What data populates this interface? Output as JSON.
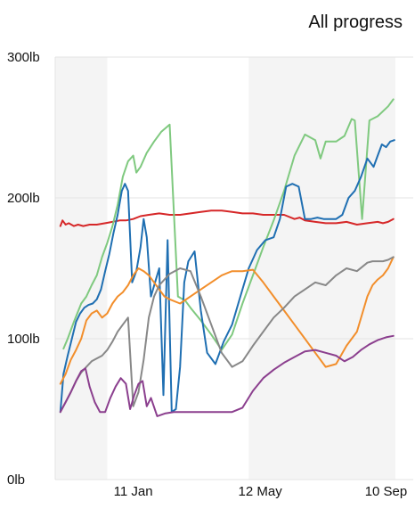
{
  "header": {
    "title": "All progress"
  },
  "chart_data": {
    "type": "line",
    "title": "",
    "xlabel": "",
    "ylabel": "",
    "y_ticks": [
      "0lb",
      "100lb",
      "200lb",
      "300lb"
    ],
    "y_tick_values": [
      0,
      100,
      200,
      300
    ],
    "ylim": [
      0,
      300
    ],
    "x_ticks": [
      "11 Jan",
      "12 May",
      "10 Sep"
    ],
    "x_tick_values": [
      45,
      167,
      288
    ],
    "xlim": [
      -30,
      297
    ],
    "grid": true,
    "legend": "none",
    "shaded_bands": [
      [
        -30,
        20
      ],
      [
        156,
        297
      ]
    ],
    "series": [
      {
        "color": "#d62728",
        "x": [
          -25,
          -23,
          -20,
          -17,
          -12,
          -8,
          -3,
          3,
          10,
          18,
          25,
          32,
          38,
          45,
          52,
          60,
          70,
          80,
          90,
          100,
          110,
          120,
          130,
          140,
          150,
          160,
          170,
          180,
          190,
          200,
          205,
          210,
          220,
          230,
          240,
          250,
          260,
          270,
          280,
          285,
          290,
          295
        ],
        "y": [
          180,
          184,
          181,
          182,
          180,
          181,
          180,
          181,
          181,
          182,
          183,
          184,
          184,
          185,
          187,
          188,
          189,
          188,
          188,
          189,
          190,
          191,
          191,
          190,
          189,
          189,
          188,
          188,
          188,
          185,
          186,
          184,
          183,
          182,
          182,
          183,
          181,
          182,
          183,
          182,
          183,
          185
        ]
      },
      {
        "color": "#7fc97f",
        "x": [
          -22,
          -18,
          -12,
          -5,
          0,
          5,
          10,
          15,
          20,
          25,
          30,
          35,
          40,
          45,
          48,
          52,
          58,
          65,
          72,
          80,
          88,
          95,
          100,
          110,
          120,
          130,
          140,
          150,
          160,
          170,
          180,
          190,
          200,
          210,
          220,
          225,
          230,
          240,
          248,
          255,
          258,
          265,
          272,
          280,
          290,
          295
        ],
        "y": [
          93,
          100,
          112,
          125,
          130,
          138,
          145,
          158,
          168,
          180,
          195,
          215,
          226,
          230,
          218,
          222,
          232,
          240,
          247,
          252,
          130,
          127,
          122,
          113,
          103,
          92,
          103,
          125,
          145,
          165,
          184,
          205,
          230,
          245,
          241,
          228,
          240,
          240,
          244,
          256,
          255,
          185,
          255,
          258,
          265,
          270
        ]
      },
      {
        "color": "#1f6fb2",
        "x": [
          -25,
          -22,
          -18,
          -14,
          -10,
          -6,
          -2,
          2,
          6,
          10,
          14,
          18,
          22,
          26,
          30,
          34,
          37,
          40,
          44,
          48,
          52,
          55,
          58,
          62,
          66,
          70,
          74,
          78,
          82,
          86,
          90,
          94,
          98,
          104,
          110,
          116,
          124,
          132,
          140,
          148,
          156,
          164,
          172,
          180,
          186,
          192,
          198,
          204,
          210,
          216,
          222,
          228,
          234,
          240,
          246,
          252,
          258,
          264,
          270,
          276,
          280,
          284,
          288,
          292,
          296
        ],
        "y": [
          48,
          75,
          88,
          100,
          112,
          118,
          122,
          124,
          125,
          128,
          135,
          148,
          160,
          175,
          188,
          205,
          210,
          205,
          140,
          148,
          165,
          185,
          172,
          130,
          140,
          150,
          60,
          170,
          48,
          50,
          80,
          140,
          155,
          162,
          120,
          90,
          82,
          98,
          110,
          130,
          150,
          163,
          170,
          172,
          185,
          208,
          210,
          208,
          185,
          185,
          186,
          185,
          185,
          185,
          188,
          200,
          205,
          215,
          228,
          222,
          230,
          238,
          236,
          240,
          241
        ]
      },
      {
        "color": "#f28e2b",
        "x": [
          -25,
          -20,
          -15,
          -10,
          -5,
          0,
          5,
          10,
          15,
          20,
          25,
          30,
          35,
          40,
          45,
          50,
          55,
          60,
          65,
          70,
          75,
          80,
          90,
          100,
          110,
          120,
          130,
          140,
          150,
          160,
          170,
          180,
          190,
          200,
          210,
          220,
          230,
          240,
          250,
          260,
          270,
          275,
          280,
          285,
          290,
          295
        ],
        "y": [
          68,
          75,
          85,
          92,
          100,
          113,
          118,
          120,
          115,
          118,
          125,
          130,
          133,
          138,
          145,
          150,
          148,
          145,
          140,
          135,
          130,
          128,
          125,
          130,
          135,
          140,
          145,
          148,
          148,
          149,
          140,
          130,
          120,
          110,
          100,
          90,
          80,
          82,
          95,
          105,
          130,
          138,
          142,
          145,
          150,
          158
        ]
      },
      {
        "color": "#888888",
        "x": [
          -25,
          -20,
          -15,
          -10,
          -5,
          0,
          5,
          10,
          15,
          20,
          25,
          30,
          35,
          40,
          45,
          50,
          55,
          60,
          65,
          70,
          75,
          80,
          90,
          100,
          110,
          120,
          130,
          140,
          150,
          160,
          170,
          180,
          190,
          200,
          210,
          220,
          230,
          240,
          250,
          260,
          270,
          275,
          280,
          285,
          290,
          295
        ],
        "y": [
          48,
          55,
          62,
          70,
          76,
          80,
          84,
          86,
          88,
          92,
          98,
          105,
          110,
          115,
          52,
          62,
          85,
          115,
          130,
          138,
          142,
          146,
          150,
          148,
          130,
          110,
          90,
          80,
          84,
          95,
          105,
          115,
          122,
          130,
          135,
          140,
          138,
          145,
          150,
          148,
          154,
          155,
          155,
          155,
          156,
          158
        ]
      },
      {
        "color": "#8b3f8e",
        "x": [
          -25,
          -20,
          -15,
          -10,
          -5,
          -1,
          3,
          8,
          13,
          18,
          23,
          28,
          33,
          38,
          42,
          46,
          50,
          54,
          58,
          62,
          68,
          76,
          84,
          92,
          100,
          110,
          120,
          130,
          140,
          150,
          160,
          170,
          180,
          190,
          200,
          210,
          220,
          230,
          240,
          248,
          256,
          264,
          272,
          280,
          288,
          295
        ],
        "y": [
          48,
          55,
          62,
          70,
          77,
          79,
          66,
          55,
          48,
          48,
          58,
          66,
          72,
          68,
          50,
          60,
          68,
          70,
          52,
          58,
          45,
          47,
          48,
          48,
          48,
          48,
          48,
          48,
          48,
          51,
          63,
          72,
          78,
          83,
          87,
          91,
          92,
          90,
          88,
          84,
          87,
          92,
          96,
          99,
          101,
          102
        ]
      }
    ]
  }
}
